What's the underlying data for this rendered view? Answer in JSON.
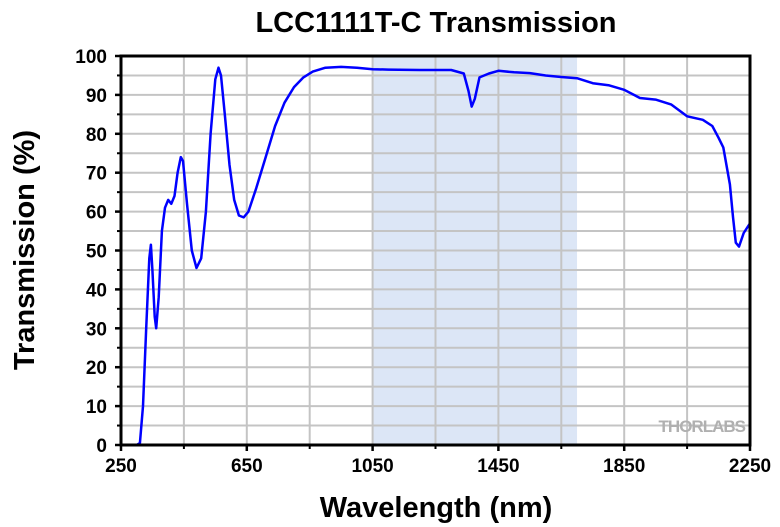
{
  "chart_data": {
    "type": "line",
    "title": "LCC1111T-C Transmission",
    "xlabel": "Wavelength (nm)",
    "ylabel": "Transmission (%)",
    "xlim": [
      250,
      2250
    ],
    "ylim": [
      0,
      100
    ],
    "xticks": [
      250,
      650,
      1050,
      1450,
      1850,
      2250
    ],
    "yticks": [
      0,
      10,
      20,
      30,
      40,
      50,
      60,
      70,
      80,
      90,
      100
    ],
    "grid": true,
    "shaded_region": {
      "x": [
        1050,
        1700
      ],
      "color": "#dce6f6"
    },
    "line_color": "#0000ff",
    "watermark": "THORLABS",
    "series": [
      {
        "name": "Transmission",
        "x": [
          250,
          300,
          310,
          320,
          330,
          340,
          345,
          350,
          357,
          362,
          370,
          380,
          390,
          400,
          410,
          420,
          430,
          440,
          447,
          460,
          475,
          490,
          505,
          520,
          535,
          550,
          560,
          568,
          580,
          595,
          610,
          625,
          640,
          655,
          680,
          710,
          740,
          770,
          800,
          830,
          860,
          900,
          950,
          1000,
          1050,
          1100,
          1200,
          1300,
          1340,
          1355,
          1365,
          1375,
          1390,
          1420,
          1450,
          1500,
          1550,
          1600,
          1650,
          1700,
          1750,
          1800,
          1850,
          1900,
          1950,
          2000,
          2050,
          2100,
          2130,
          2150,
          2165,
          2186,
          2196,
          2205,
          2215,
          2230,
          2250
        ],
        "y": [
          0,
          0,
          0.5,
          10,
          30,
          48,
          51.5,
          45,
          33,
          30,
          38,
          55,
          61,
          63,
          62,
          64,
          70,
          74,
          73,
          62,
          50,
          45.5,
          48,
          60,
          80,
          94,
          97,
          95,
          85,
          72,
          63,
          59,
          58.5,
          60,
          66,
          74,
          82,
          88,
          92,
          94.5,
          96,
          97,
          97.2,
          97,
          96.6,
          96.5,
          96.4,
          96.4,
          95.5,
          91,
          87,
          89,
          94.5,
          95.5,
          96.2,
          95.8,
          95.6,
          95,
          94.6,
          94.3,
          93,
          92.5,
          91.3,
          89.2,
          88.8,
          87.5,
          84.5,
          83.6,
          82,
          79,
          76.5,
          67,
          58.6,
          52,
          51,
          54.5,
          57
        ]
      }
    ]
  }
}
